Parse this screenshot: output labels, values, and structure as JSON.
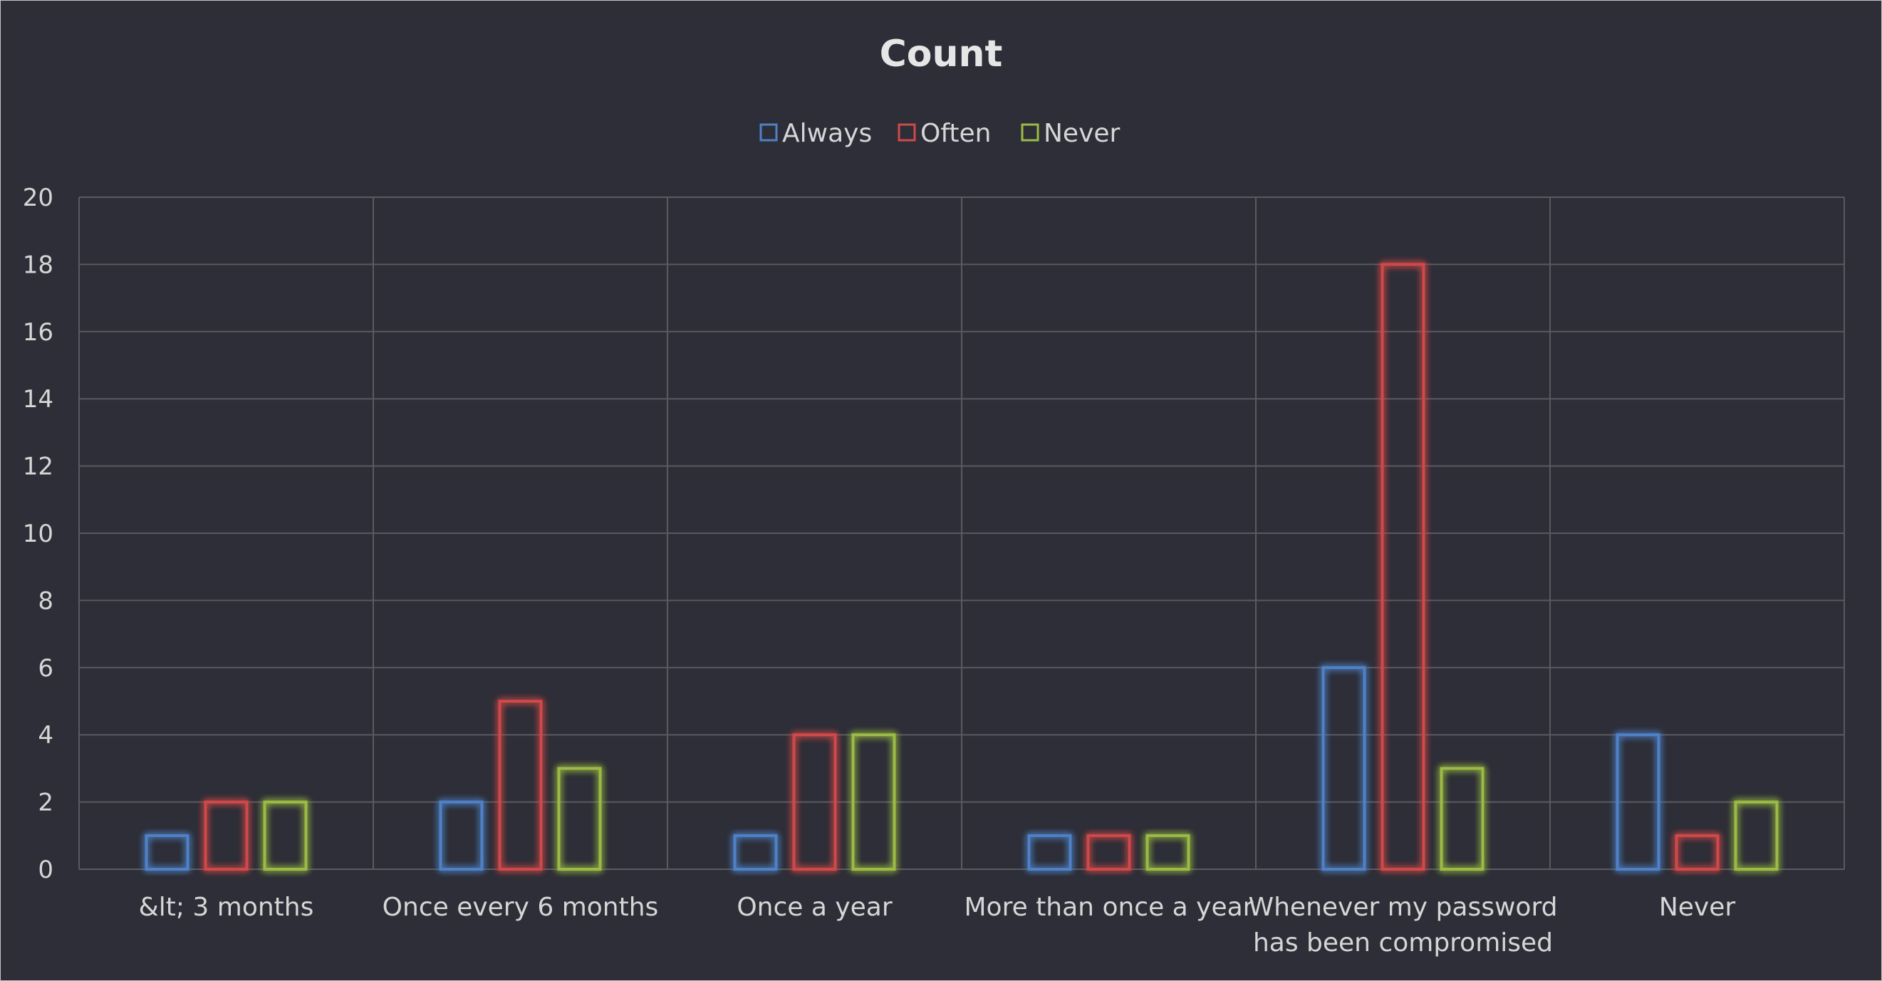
{
  "chart_data": {
    "type": "bar",
    "title": "Count",
    "xlabel": "",
    "ylabel": "",
    "categories": [
      [
        "&lt; 3 months"
      ],
      [
        "Once every 6 months"
      ],
      [
        "Once a year"
      ],
      [
        "More than once a year"
      ],
      [
        "Whenever my password",
        "has been compromised"
      ],
      [
        "Never"
      ]
    ],
    "series": [
      {
        "name": "Always",
        "color": "#4f81c7",
        "values": [
          1,
          2,
          1,
          1,
          6,
          4
        ]
      },
      {
        "name": "Often",
        "color": "#d04a4a",
        "values": [
          2,
          5,
          4,
          1,
          18,
          1
        ]
      },
      {
        "name": "Never",
        "color": "#9bbb45",
        "values": [
          2,
          3,
          4,
          1,
          3,
          2
        ]
      }
    ],
    "ylim": [
      0,
      20
    ],
    "yticks": [
      0,
      2,
      4,
      6,
      8,
      10,
      12,
      14,
      16,
      18,
      20
    ],
    "grid": "both",
    "legend_position": "top-center",
    "bar_style": "outline-glow"
  },
  "colors": {
    "background": "#2d2e37",
    "grid": "#5a5b60",
    "text": "#d6d6d6"
  }
}
